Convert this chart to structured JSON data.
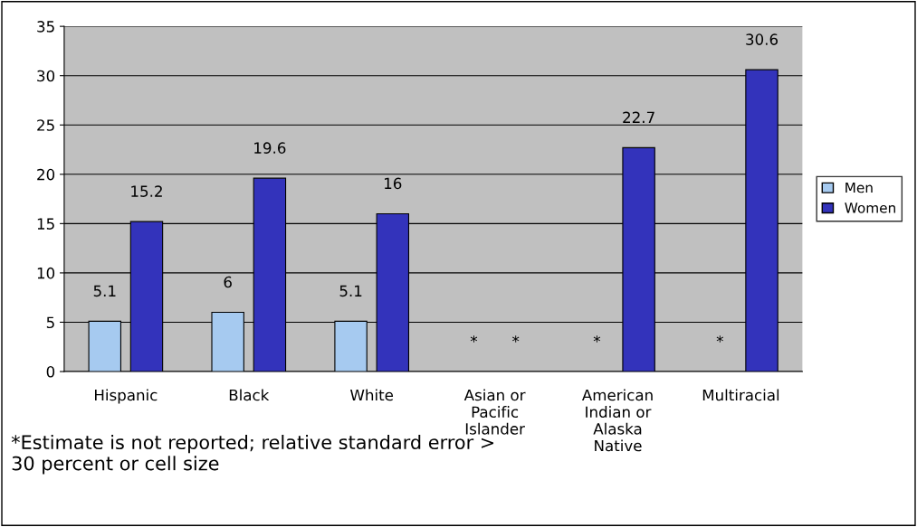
{
  "chart_data": {
    "type": "bar",
    "categories": [
      "Hispanic",
      "Black",
      "White",
      "Asian or Pacific Islander",
      "American Indian or Alaska Native",
      "Multiracial"
    ],
    "series": [
      {
        "name": "Men",
        "color": "#a6caf0",
        "values": [
          5.1,
          6,
          5.1,
          null,
          null,
          null
        ],
        "value_labels": [
          "5.1",
          "6",
          "5.1",
          "*",
          "*",
          "*"
        ]
      },
      {
        "name": "Women",
        "color": "#3333bb",
        "values": [
          15.2,
          19.6,
          16,
          null,
          22.7,
          30.6
        ],
        "value_labels": [
          "15.2",
          "19.6",
          "16",
          "*",
          "22.7",
          "30.6"
        ]
      }
    ],
    "ylim": [
      0,
      35
    ],
    "yticks": [
      0,
      5,
      10,
      15,
      20,
      25,
      30,
      35
    ],
    "grid": "y",
    "legend": "right",
    "annotations": [
      "*Estimate is not reported; relative standard error > 30 percent or cell size"
    ]
  }
}
